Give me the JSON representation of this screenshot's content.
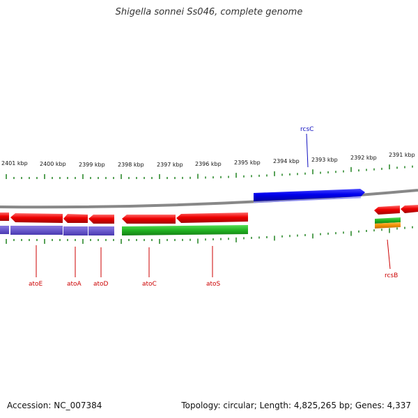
{
  "title": "Shigella sonnei Ss046, complete genome",
  "footer": {
    "accession": "Accession: NC_007384",
    "stats": "Topology: circular; Length: 4,825,265 bp; Genes: 4,337"
  },
  "colors": {
    "backbone": "#888888",
    "tick": "#2e8b2e",
    "forward_gene": "#0000ee",
    "reverse_gene": "#ee0000",
    "reverse_cds": "#6a5acd",
    "green_track": "#22b322",
    "orange_track": "#f29000",
    "label_line": "#cc0000"
  },
  "scale_labels": [
    "2401 kbp",
    "2400 kbp",
    "2399 kbp",
    "2398 kbp",
    "2397 kbp",
    "2396 kbp",
    "2395 kbp",
    "2394 kbp",
    "2393 kbp",
    "2392 kbp",
    "2391 kbp"
  ],
  "gene_labels": [
    "atoE",
    "atoA",
    "atoD",
    "atoC",
    "atoS",
    "rcsB",
    "rcsC"
  ]
}
